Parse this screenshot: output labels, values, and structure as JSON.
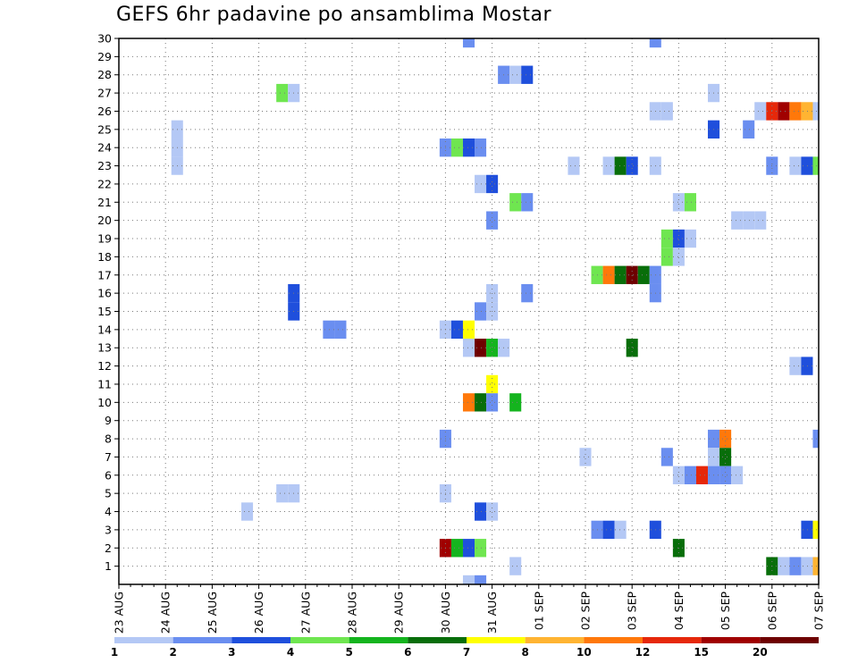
{
  "chart_data": {
    "type": "heatmap",
    "title": "GEFS 6hr padavine po ansamblima Mostar",
    "x_ticks": [
      "23 AUG",
      "24 AUG",
      "25 AUG",
      "26 AUG",
      "27 AUG",
      "28 AUG",
      "29 AUG",
      "30 AUG",
      "31 AUG",
      "01 SEP",
      "02 SEP",
      "03 SEP",
      "04 SEP",
      "05 SEP",
      "06 SEP",
      "07 SEP"
    ],
    "x_range": [
      "23 AUG 00Z",
      "07 SEP 00Z"
    ],
    "time_step_hours": 6,
    "y_ticks": [
      1,
      2,
      3,
      4,
      5,
      6,
      7,
      8,
      9,
      10,
      11,
      12,
      13,
      14,
      15,
      16,
      17,
      18,
      19,
      20,
      21,
      22,
      23,
      24,
      25,
      26,
      27,
      28,
      29,
      30
    ],
    "y_range": [
      0,
      30
    ],
    "grid": "dotted",
    "colorbar": {
      "colors": [
        "#b4c8f5",
        "#6a8ef0",
        "#1f4fdc",
        "#6fe650",
        "#14b41e",
        "#086e0a",
        "#ffff00",
        "#ffb432",
        "#ff780a",
        "#e6280a",
        "#a00000",
        "#6e0000"
      ],
      "labels": [
        "1",
        "2",
        "3",
        "4",
        "5",
        "6",
        "7",
        "8",
        "10",
        "12",
        "15",
        "20"
      ]
    },
    "cells": [
      {
        "member": 30,
        "time": "30 AUG 12Z",
        "level": 2
      },
      {
        "member": 30,
        "time": "03 SEP 12Z",
        "level": 2
      },
      {
        "member": 28,
        "time": "31 AUG 06Z",
        "level": 2
      },
      {
        "member": 28,
        "time": "31 AUG 12Z",
        "level": 1
      },
      {
        "member": 28,
        "time": "31 AUG 18Z",
        "level": 3
      },
      {
        "member": 27,
        "time": "26 AUG 12Z",
        "level": 4
      },
      {
        "member": 27,
        "time": "26 AUG 18Z",
        "level": 1
      },
      {
        "member": 27,
        "time": "04 SEP 18Z",
        "level": 1
      },
      {
        "member": 26,
        "time": "03 SEP 12Z",
        "level": 1
      },
      {
        "member": 26,
        "time": "03 SEP 18Z",
        "level": 1
      },
      {
        "member": 26,
        "time": "05 SEP 18Z",
        "level": 1
      },
      {
        "member": 26,
        "time": "06 SEP 00Z",
        "level": 10
      },
      {
        "member": 26,
        "time": "06 SEP 06Z",
        "level": 11
      },
      {
        "member": 26,
        "time": "06 SEP 12Z",
        "level": 9
      },
      {
        "member": 26,
        "time": "06 SEP 18Z",
        "level": 8
      },
      {
        "member": 26,
        "time": "07 SEP 00Z",
        "level": 1
      },
      {
        "member": 25,
        "time": "24 AUG 06Z",
        "level": 1
      },
      {
        "member": 25,
        "time": "04 SEP 18Z",
        "level": 3
      },
      {
        "member": 25,
        "time": "05 SEP 12Z",
        "level": 2
      },
      {
        "member": 24,
        "time": "24 AUG 06Z",
        "level": 1
      },
      {
        "member": 24,
        "time": "30 AUG 00Z",
        "level": 2
      },
      {
        "member": 24,
        "time": "30 AUG 06Z",
        "level": 4
      },
      {
        "member": 24,
        "time": "30 AUG 12Z",
        "level": 3
      },
      {
        "member": 24,
        "time": "30 AUG 18Z",
        "level": 2
      },
      {
        "member": 23,
        "time": "24 AUG 06Z",
        "level": 1
      },
      {
        "member": 23,
        "time": "01 SEP 18Z",
        "level": 1
      },
      {
        "member": 23,
        "time": "02 SEP 12Z",
        "level": 1
      },
      {
        "member": 23,
        "time": "02 SEP 18Z",
        "level": 6
      },
      {
        "member": 23,
        "time": "03 SEP 00Z",
        "level": 3
      },
      {
        "member": 23,
        "time": "03 SEP 12Z",
        "level": 1
      },
      {
        "member": 23,
        "time": "06 SEP 00Z",
        "level": 2
      },
      {
        "member": 23,
        "time": "06 SEP 12Z",
        "level": 1
      },
      {
        "member": 23,
        "time": "06 SEP 18Z",
        "level": 3
      },
      {
        "member": 23,
        "time": "07 SEP 00Z",
        "level": 4
      },
      {
        "member": 22,
        "time": "30 AUG 18Z",
        "level": 1
      },
      {
        "member": 22,
        "time": "31 AUG 00Z",
        "level": 3
      },
      {
        "member": 21,
        "time": "31 AUG 12Z",
        "level": 4
      },
      {
        "member": 21,
        "time": "31 AUG 18Z",
        "level": 2
      },
      {
        "member": 21,
        "time": "04 SEP 00Z",
        "level": 1
      },
      {
        "member": 21,
        "time": "04 SEP 06Z",
        "level": 4
      },
      {
        "member": 20,
        "time": "31 AUG 00Z",
        "level": 2
      },
      {
        "member": 20,
        "time": "05 SEP 06Z",
        "level": 1
      },
      {
        "member": 20,
        "time": "05 SEP 12Z",
        "level": 1
      },
      {
        "member": 20,
        "time": "05 SEP 18Z",
        "level": 1
      },
      {
        "member": 19,
        "time": "03 SEP 18Z",
        "level": 4
      },
      {
        "member": 19,
        "time": "04 SEP 00Z",
        "level": 3
      },
      {
        "member": 19,
        "time": "04 SEP 06Z",
        "level": 1
      },
      {
        "member": 18,
        "time": "03 SEP 18Z",
        "level": 4
      },
      {
        "member": 18,
        "time": "04 SEP 00Z",
        "level": 1
      },
      {
        "member": 17,
        "time": "02 SEP 06Z",
        "level": 4
      },
      {
        "member": 17,
        "time": "02 SEP 12Z",
        "level": 9
      },
      {
        "member": 17,
        "time": "02 SEP 18Z",
        "level": 6
      },
      {
        "member": 17,
        "time": "03 SEP 00Z",
        "level": 12
      },
      {
        "member": 17,
        "time": "03 SEP 06Z",
        "level": 6
      },
      {
        "member": 17,
        "time": "03 SEP 12Z",
        "level": 2
      },
      {
        "member": 16,
        "time": "26 AUG 18Z",
        "level": 3
      },
      {
        "member": 16,
        "time": "03 SEP 12Z",
        "level": 2
      },
      {
        "member": 16,
        "time": "31 AUG 18Z",
        "level": 2
      },
      {
        "member": 16,
        "time": "31 AUG 00Z",
        "level": 1
      },
      {
        "member": 15,
        "time": "26 AUG 18Z",
        "level": 3
      },
      {
        "member": 15,
        "time": "30 AUG 18Z",
        "level": 2
      },
      {
        "member": 15,
        "time": "31 AUG 00Z",
        "level": 1
      },
      {
        "member": 14,
        "time": "27 AUG 12Z",
        "level": 2
      },
      {
        "member": 14,
        "time": "27 AUG 18Z",
        "level": 2
      },
      {
        "member": 14,
        "time": "30 AUG 00Z",
        "level": 1
      },
      {
        "member": 14,
        "time": "30 AUG 06Z",
        "level": 3
      },
      {
        "member": 14,
        "time": "30 AUG 12Z",
        "level": 7
      },
      {
        "member": 13,
        "time": "30 AUG 12Z",
        "level": 1
      },
      {
        "member": 13,
        "time": "30 AUG 18Z",
        "level": 12
      },
      {
        "member": 13,
        "time": "31 AUG 00Z",
        "level": 5
      },
      {
        "member": 13,
        "time": "31 AUG 06Z",
        "level": 1
      },
      {
        "member": 13,
        "time": "03 SEP 00Z",
        "level": 6
      },
      {
        "member": 12,
        "time": "06 SEP 12Z",
        "level": 1
      },
      {
        "member": 12,
        "time": "06 SEP 18Z",
        "level": 3
      },
      {
        "member": 11,
        "time": "31 AUG 00Z",
        "level": 7
      },
      {
        "member": 10,
        "time": "30 AUG 12Z",
        "level": 9
      },
      {
        "member": 10,
        "time": "30 AUG 18Z",
        "level": 6
      },
      {
        "member": 10,
        "time": "31 AUG 00Z",
        "level": 2
      },
      {
        "member": 10,
        "time": "31 AUG 12Z",
        "level": 5
      },
      {
        "member": 8,
        "time": "30 AUG 00Z",
        "level": 2
      },
      {
        "member": 8,
        "time": "04 SEP 18Z",
        "level": 2
      },
      {
        "member": 8,
        "time": "05 SEP 00Z",
        "level": 9
      },
      {
        "member": 8,
        "time": "07 SEP 00Z",
        "level": 2
      },
      {
        "member": 7,
        "time": "02 SEP 00Z",
        "level": 1
      },
      {
        "member": 7,
        "time": "03 SEP 18Z",
        "level": 2
      },
      {
        "member": 7,
        "time": "04 SEP 18Z",
        "level": 1
      },
      {
        "member": 7,
        "time": "05 SEP 00Z",
        "level": 6
      },
      {
        "member": 6,
        "time": "04 SEP 00Z",
        "level": 1
      },
      {
        "member": 6,
        "time": "04 SEP 06Z",
        "level": 2
      },
      {
        "member": 6,
        "time": "04 SEP 12Z",
        "level": 10
      },
      {
        "member": 6,
        "time": "04 SEP 18Z",
        "level": 2
      },
      {
        "member": 6,
        "time": "05 SEP 00Z",
        "level": 2
      },
      {
        "member": 6,
        "time": "05 SEP 06Z",
        "level": 1
      },
      {
        "member": 5,
        "time": "26 AUG 12Z",
        "level": 1
      },
      {
        "member": 5,
        "time": "26 AUG 18Z",
        "level": 1
      },
      {
        "member": 5,
        "time": "30 AUG 00Z",
        "level": 1
      },
      {
        "member": 4,
        "time": "25 AUG 18Z",
        "level": 1
      },
      {
        "member": 4,
        "time": "30 AUG 18Z",
        "level": 3
      },
      {
        "member": 4,
        "time": "31 AUG 00Z",
        "level": 1
      },
      {
        "member": 3,
        "time": "02 SEP 06Z",
        "level": 2
      },
      {
        "member": 3,
        "time": "02 SEP 12Z",
        "level": 3
      },
      {
        "member": 3,
        "time": "02 SEP 18Z",
        "level": 1
      },
      {
        "member": 3,
        "time": "03 SEP 12Z",
        "level": 3
      },
      {
        "member": 3,
        "time": "06 SEP 18Z",
        "level": 3
      },
      {
        "member": 3,
        "time": "07 SEP 00Z",
        "level": 7
      },
      {
        "member": 2,
        "time": "30 AUG 00Z",
        "level": 11
      },
      {
        "member": 2,
        "time": "30 AUG 06Z",
        "level": 5
      },
      {
        "member": 2,
        "time": "30 AUG 12Z",
        "level": 3
      },
      {
        "member": 2,
        "time": "30 AUG 18Z",
        "level": 4
      },
      {
        "member": 2,
        "time": "04 SEP 00Z",
        "level": 6
      },
      {
        "member": 1,
        "time": "31 AUG 12Z",
        "level": 1
      },
      {
        "member": 1,
        "time": "06 SEP 00Z",
        "level": 6
      },
      {
        "member": 1,
        "time": "06 SEP 06Z",
        "level": 1
      },
      {
        "member": 1,
        "time": "06 SEP 12Z",
        "level": 2
      },
      {
        "member": 1,
        "time": "06 SEP 18Z",
        "level": 1
      },
      {
        "member": 1,
        "time": "07 SEP 00Z",
        "level": 8
      },
      {
        "member": 0,
        "time": "30 AUG 12Z",
        "level": 1
      },
      {
        "member": 0,
        "time": "30 AUG 18Z",
        "level": 2
      }
    ]
  }
}
